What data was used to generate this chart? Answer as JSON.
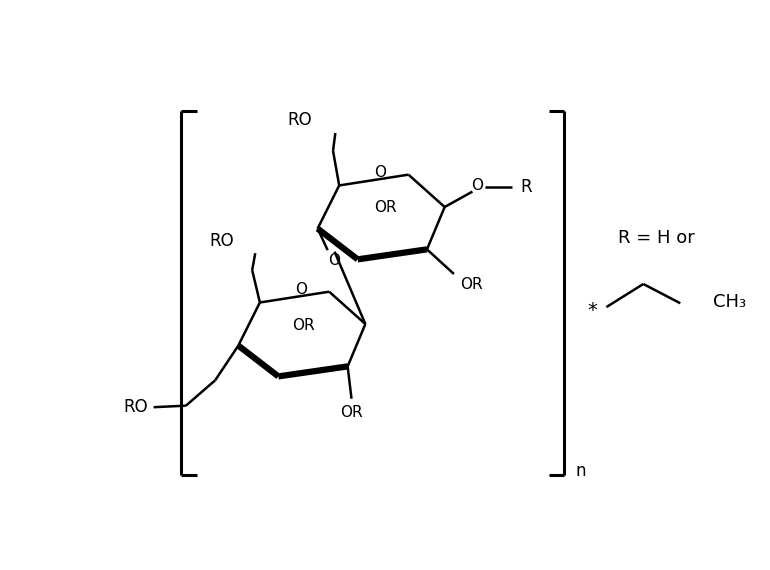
{
  "bg_color": "#ffffff",
  "lw_thin": 1.8,
  "lw_thick": 4.5,
  "lw_bracket": 2.2,
  "fs_label": 12,
  "fs_R": 13,
  "xlim": [
    0,
    7.7
  ],
  "ylim": [
    0,
    5.7
  ]
}
